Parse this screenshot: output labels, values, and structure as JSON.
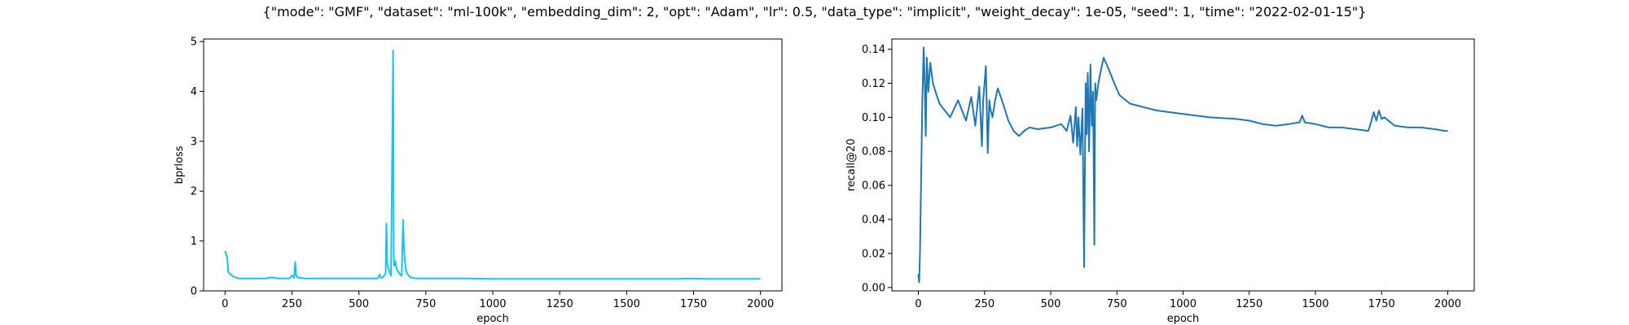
{
  "figure": {
    "title": "{\"mode\": \"GMF\", \"dataset\": \"ml-100k\", \"embedding_dim\": 2, \"opt\": \"Adam\", \"lr\": 0.5, \"data_type\": \"implicit\", \"weight_decay\": 1e-05, \"seed\": 1, \"time\": \"2022-02-01-15\"}"
  },
  "chart_data": [
    {
      "type": "line",
      "xlabel": "epoch",
      "ylabel": "bprloss",
      "xlim": [
        -80,
        2080
      ],
      "ylim": [
        0,
        5.05
      ],
      "xticks": [
        0,
        250,
        500,
        750,
        1000,
        1250,
        1500,
        1750,
        2000
      ],
      "yticks": [
        0,
        1,
        2,
        3,
        4,
        5
      ],
      "grid": false,
      "series": [
        {
          "color": "#17c3f0",
          "x": [
            0,
            5,
            8,
            12,
            20,
            30,
            50,
            100,
            150,
            175,
            200,
            240,
            250,
            258,
            262,
            266,
            270,
            280,
            300,
            400,
            500,
            570,
            578,
            582,
            590,
            600,
            603,
            606,
            610,
            620,
            628,
            630,
            632,
            636,
            640,
            650,
            660,
            665,
            668,
            671,
            675,
            680,
            690,
            700,
            720,
            750,
            800,
            900,
            1000,
            1200,
            1400,
            1600,
            1700,
            1720,
            1800,
            1900,
            2000
          ],
          "y": [
            0.8,
            0.72,
            0.68,
            0.38,
            0.33,
            0.29,
            0.25,
            0.25,
            0.25,
            0.27,
            0.25,
            0.25,
            0.31,
            0.26,
            0.58,
            0.3,
            0.27,
            0.26,
            0.25,
            0.25,
            0.25,
            0.25,
            0.33,
            0.26,
            0.27,
            0.35,
            1.35,
            0.55,
            0.45,
            0.3,
            4.82,
            0.7,
            0.5,
            0.6,
            0.45,
            0.35,
            0.3,
            1.42,
            0.9,
            0.62,
            0.45,
            0.35,
            0.28,
            0.26,
            0.25,
            0.25,
            0.25,
            0.25,
            0.24,
            0.24,
            0.24,
            0.24,
            0.24,
            0.25,
            0.24,
            0.24,
            0.24
          ]
        }
      ]
    },
    {
      "type": "line",
      "xlabel": "epoch",
      "ylabel": "recall@20",
      "xlim": [
        -100,
        2100
      ],
      "ylim": [
        -0.002,
        0.146
      ],
      "xticks": [
        0,
        250,
        500,
        750,
        1000,
        1250,
        1500,
        1750,
        2000
      ],
      "yticks": [
        0.0,
        0.02,
        0.04,
        0.06,
        0.08,
        0.1,
        0.12,
        0.14
      ],
      "grid": false,
      "series": [
        {
          "color": "#1f77b4",
          "x": [
            0,
            3,
            6,
            10,
            15,
            20,
            24,
            28,
            32,
            38,
            45,
            55,
            65,
            80,
            100,
            120,
            150,
            180,
            200,
            215,
            230,
            240,
            245,
            250,
            255,
            262,
            268,
            272,
            280,
            290,
            300,
            320,
            340,
            360,
            380,
            400,
            420,
            450,
            500,
            540,
            560,
            575,
            585,
            595,
            600,
            605,
            612,
            620,
            626,
            632,
            636,
            640,
            645,
            650,
            655,
            660,
            665,
            668,
            672,
            680,
            690,
            700,
            720,
            740,
            760,
            800,
            850,
            900,
            1000,
            1100,
            1200,
            1250,
            1300,
            1350,
            1400,
            1440,
            1450,
            1460,
            1500,
            1550,
            1600,
            1650,
            1700,
            1710,
            1720,
            1730,
            1740,
            1750,
            1760,
            1800,
            1850,
            1900,
            1950,
            1990,
            2000
          ],
          "y": [
            0.008,
            0.003,
            0.02,
            0.06,
            0.11,
            0.141,
            0.12,
            0.089,
            0.135,
            0.115,
            0.132,
            0.12,
            0.115,
            0.108,
            0.104,
            0.1,
            0.11,
            0.098,
            0.112,
            0.095,
            0.118,
            0.083,
            0.11,
            0.12,
            0.13,
            0.079,
            0.11,
            0.105,
            0.1,
            0.11,
            0.117,
            0.108,
            0.098,
            0.092,
            0.089,
            0.092,
            0.094,
            0.093,
            0.094,
            0.096,
            0.092,
            0.101,
            0.085,
            0.106,
            0.083,
            0.1,
            0.078,
            0.105,
            0.012,
            0.12,
            0.09,
            0.126,
            0.08,
            0.131,
            0.095,
            0.115,
            0.025,
            0.12,
            0.11,
            0.12,
            0.128,
            0.135,
            0.128,
            0.12,
            0.113,
            0.108,
            0.106,
            0.104,
            0.102,
            0.1,
            0.099,
            0.098,
            0.096,
            0.095,
            0.096,
            0.097,
            0.101,
            0.097,
            0.096,
            0.094,
            0.094,
            0.093,
            0.092,
            0.097,
            0.103,
            0.098,
            0.104,
            0.099,
            0.1,
            0.095,
            0.094,
            0.094,
            0.093,
            0.092,
            0.092
          ]
        }
      ]
    }
  ]
}
